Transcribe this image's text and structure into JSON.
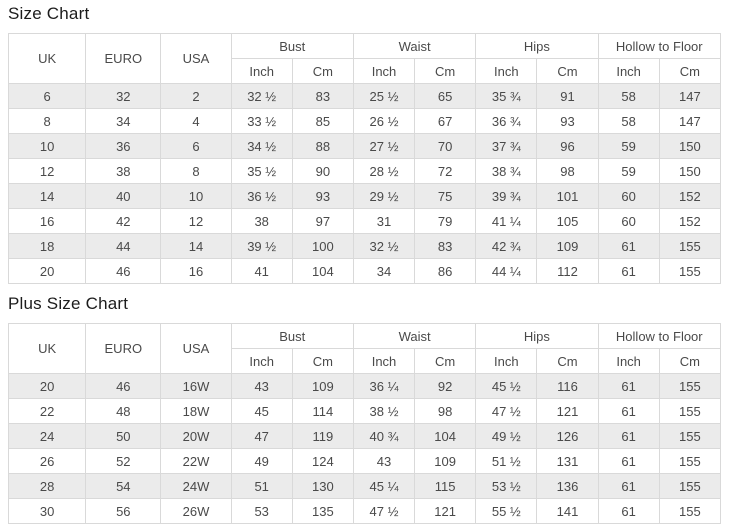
{
  "colors": {
    "border": "#d9d9d9",
    "stripe_row_background": "#ebebeb",
    "text": "#4a4a4a",
    "title_text": "#1c1c1c"
  },
  "tables": [
    {
      "title": "Size Chart",
      "size_column_headers": [
        "UK",
        "EURO",
        "USA"
      ],
      "measurement_group_headers": [
        "Bust",
        "Waist",
        "Hips",
        "Hollow to Floor"
      ],
      "unit_headers": [
        "Inch",
        "Cm"
      ],
      "rows": [
        [
          "6",
          "32",
          "2",
          "32 ½",
          "83",
          "25 ½",
          "65",
          "35 ¾",
          "91",
          "58",
          "147"
        ],
        [
          "8",
          "34",
          "4",
          "33 ½",
          "85",
          "26 ½",
          "67",
          "36 ¾",
          "93",
          "58",
          "147"
        ],
        [
          "10",
          "36",
          "6",
          "34 ½",
          "88",
          "27 ½",
          "70",
          "37 ¾",
          "96",
          "59",
          "150"
        ],
        [
          "12",
          "38",
          "8",
          "35 ½",
          "90",
          "28 ½",
          "72",
          "38 ¾",
          "98",
          "59",
          "150"
        ],
        [
          "14",
          "40",
          "10",
          "36 ½",
          "93",
          "29 ½",
          "75",
          "39 ¾",
          "101",
          "60",
          "152"
        ],
        [
          "16",
          "42",
          "12",
          "38",
          "97",
          "31",
          "79",
          "41 ¼",
          "105",
          "60",
          "152"
        ],
        [
          "18",
          "44",
          "14",
          "39 ½",
          "100",
          "32 ½",
          "83",
          "42 ¾",
          "109",
          "61",
          "155"
        ],
        [
          "20",
          "46",
          "16",
          "41",
          "104",
          "34",
          "86",
          "44 ¼",
          "112",
          "61",
          "155"
        ]
      ]
    },
    {
      "title": "Plus Size Chart",
      "size_column_headers": [
        "UK",
        "EURO",
        "USA"
      ],
      "measurement_group_headers": [
        "Bust",
        "Waist",
        "Hips",
        "Hollow to Floor"
      ],
      "unit_headers": [
        "Inch",
        "Cm"
      ],
      "rows": [
        [
          "20",
          "46",
          "16W",
          "43",
          "109",
          "36 ¼",
          "92",
          "45 ½",
          "116",
          "61",
          "155"
        ],
        [
          "22",
          "48",
          "18W",
          "45",
          "114",
          "38 ½",
          "98",
          "47 ½",
          "121",
          "61",
          "155"
        ],
        [
          "24",
          "50",
          "20W",
          "47",
          "119",
          "40 ¾",
          "104",
          "49 ½",
          "126",
          "61",
          "155"
        ],
        [
          "26",
          "52",
          "22W",
          "49",
          "124",
          "43",
          "109",
          "51 ½",
          "131",
          "61",
          "155"
        ],
        [
          "28",
          "54",
          "24W",
          "51",
          "130",
          "45 ¼",
          "115",
          "53 ½",
          "136",
          "61",
          "155"
        ],
        [
          "30",
          "56",
          "26W",
          "53",
          "135",
          "47 ½",
          "121",
          "55 ½",
          "141",
          "61",
          "155"
        ]
      ]
    }
  ]
}
